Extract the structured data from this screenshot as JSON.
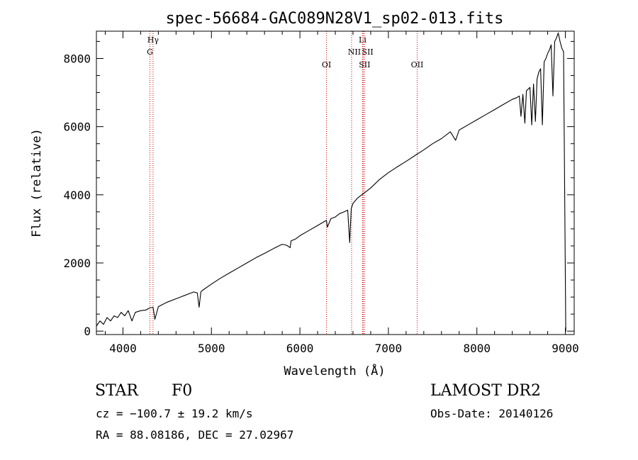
{
  "chart_data": {
    "type": "line",
    "title": "spec-56684-GAC089N28V1_sp02-013.fits",
    "xlabel": "Wavelength (Å)",
    "ylabel": "Flux (relative)",
    "xlim": [
      3700,
      9100
    ],
    "ylim": [
      -100,
      8800
    ],
    "x_ticks": [
      4000,
      5000,
      6000,
      7000,
      8000,
      9000
    ],
    "y_ticks": [
      0,
      2000,
      4000,
      6000,
      8000
    ],
    "grid": false,
    "series": [
      {
        "color": "#000000",
        "x": [
          3700,
          3740,
          3780,
          3820,
          3860,
          3900,
          3940,
          3980,
          4020,
          4060,
          4101,
          4140,
          4200,
          4260,
          4300,
          4340,
          4361,
          4400,
          4500,
          4600,
          4700,
          4800,
          4840,
          4861,
          4880,
          4900,
          5000,
          5100,
          5200,
          5300,
          5400,
          5500,
          5600,
          5700,
          5800,
          5850,
          5890,
          5900,
          5950,
          6000,
          6100,
          6200,
          6300,
          6310,
          6350,
          6400,
          6450,
          6500,
          6540,
          6563,
          6580,
          6600,
          6650,
          6700,
          6750,
          6800,
          6900,
          7000,
          7100,
          7200,
          7300,
          7400,
          7500,
          7600,
          7700,
          7760,
          7800,
          7900,
          8000,
          8100,
          8200,
          8300,
          8400,
          8450,
          8480,
          8498,
          8520,
          8542,
          8560,
          8580,
          8600,
          8620,
          8640,
          8662,
          8680,
          8700,
          8720,
          8740,
          8760,
          8780,
          8800,
          8820,
          8840,
          8860,
          8880,
          8900,
          8920,
          8940,
          8960,
          8980,
          9000,
          9005,
          9010
        ],
        "y": [
          150,
          300,
          200,
          400,
          300,
          450,
          400,
          550,
          450,
          600,
          300,
          550,
          600,
          620,
          680,
          700,
          350,
          720,
          850,
          950,
          1050,
          1150,
          1120,
          700,
          1150,
          1200,
          1380,
          1550,
          1700,
          1850,
          2000,
          2150,
          2280,
          2420,
          2550,
          2520,
          2450,
          2650,
          2700,
          2800,
          2950,
          3100,
          3250,
          3050,
          3300,
          3350,
          3450,
          3500,
          3550,
          2600,
          3600,
          3750,
          3900,
          4000,
          4100,
          4200,
          4450,
          4650,
          4820,
          4980,
          5150,
          5320,
          5500,
          5650,
          5850,
          5600,
          5900,
          6050,
          6200,
          6350,
          6500,
          6650,
          6800,
          6850,
          6900,
          6300,
          6950,
          6100,
          7050,
          7100,
          7150,
          6050,
          7250,
          6150,
          7400,
          7600,
          7700,
          6050,
          7900,
          8000,
          8150,
          8250,
          8400,
          6900,
          8500,
          8600,
          8750,
          8500,
          8300,
          8200,
          1600,
          0,
          0
        ]
      }
    ],
    "spectral_lines": [
      {
        "label": "Hγ",
        "x": 4340
      },
      {
        "label": "G",
        "x": 4305
      },
      {
        "label": "OI",
        "x": 6300
      },
      {
        "label": "NII",
        "x": 6584
      },
      {
        "label": "Li",
        "x": 6708
      },
      {
        "label": "SII",
        "x": 6717
      },
      {
        "label": "SII",
        "x": 6731
      },
      {
        "label": "OII",
        "x": 7325
      }
    ],
    "line_color": "#cc0000"
  },
  "info": {
    "object_class": "STAR",
    "subclass": "F0",
    "survey": "LAMOST DR2",
    "redshift": "cz = −100.7 ± 19.2 km/s",
    "obs_date": "Obs-Date: 20140126",
    "coords": "RA =  88.08186, DEC =  27.02967"
  }
}
